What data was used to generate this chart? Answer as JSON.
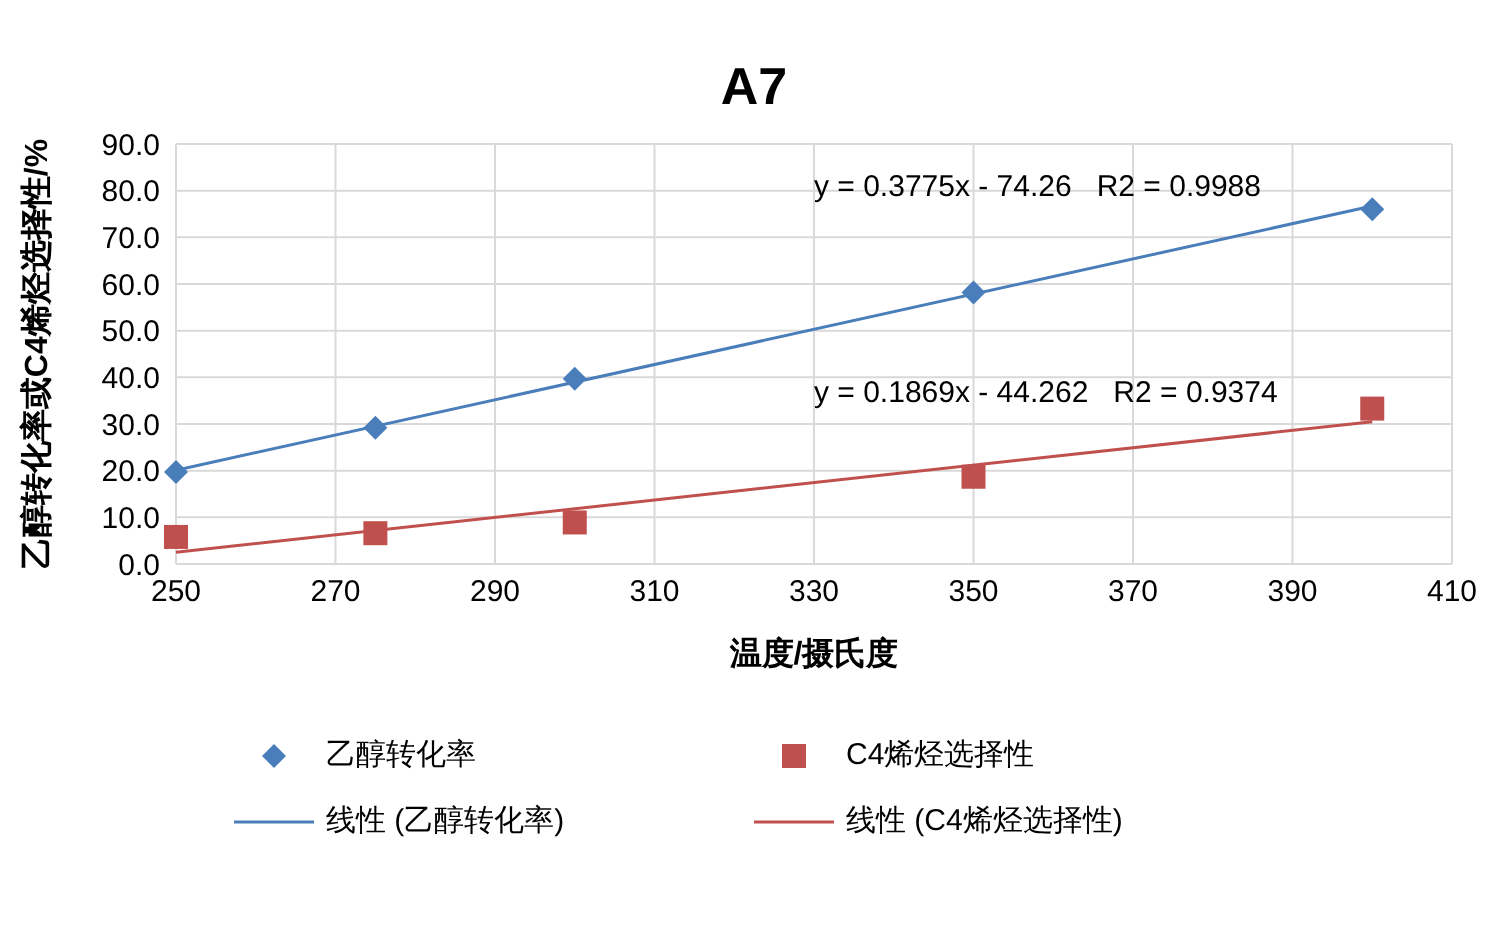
{
  "chart_data": {
    "type": "scatter",
    "title": "A7",
    "xlabel": "温度/摄氏度",
    "ylabel": "乙醇转化率或C4烯烃选择性/%",
    "series": [
      {
        "name": "乙醇转化率",
        "marker": "diamond",
        "color": "#4a7ebb",
        "x": [
          250,
          275,
          300,
          350,
          400
        ],
        "values": [
          19.7,
          29.2,
          39.7,
          58.2,
          76.0
        ]
      },
      {
        "name": "C4烯烃选择性",
        "marker": "square",
        "color": "#c0504d",
        "x": [
          250,
          275,
          300,
          350,
          400
        ],
        "values": [
          5.8,
          6.6,
          8.9,
          18.7,
          33.3
        ]
      },
      {
        "name": "线性 (乙醇转化率)",
        "type": "line",
        "marker": "none",
        "color": "#4a7ebb",
        "x": [
          250,
          400
        ],
        "values": [
          20.1,
          76.7
        ]
      },
      {
        "name": "线性 (C4烯烃选择性)",
        "type": "line",
        "marker": "none",
        "color": "#c0504d",
        "x": [
          250,
          400
        ],
        "values": [
          2.5,
          30.5
        ]
      }
    ],
    "xlim": [
      250,
      410
    ],
    "xticks": [
      250,
      270,
      290,
      310,
      330,
      350,
      370,
      390,
      410
    ],
    "ylim": [
      0,
      90
    ],
    "yticks": [
      {
        "value": 0,
        "label": "0.0"
      },
      {
        "value": 10,
        "label": "10.0"
      },
      {
        "value": 20,
        "label": "20.0"
      },
      {
        "value": 30,
        "label": "30.0"
      },
      {
        "value": 40,
        "label": "40.0"
      },
      {
        "value": 50,
        "label": "50.0"
      },
      {
        "value": 60,
        "label": "60.0"
      },
      {
        "value": 70,
        "label": "70.0"
      },
      {
        "value": 80,
        "label": "80.0"
      },
      {
        "value": 90,
        "label": "90.0"
      }
    ],
    "grid": true,
    "legend": "bottom",
    "annotations": [
      "y = 0.3775x - 74.26   R2 = 0.9988",
      "y = 0.1869x - 44.262   R2 = 0.9374"
    ]
  }
}
